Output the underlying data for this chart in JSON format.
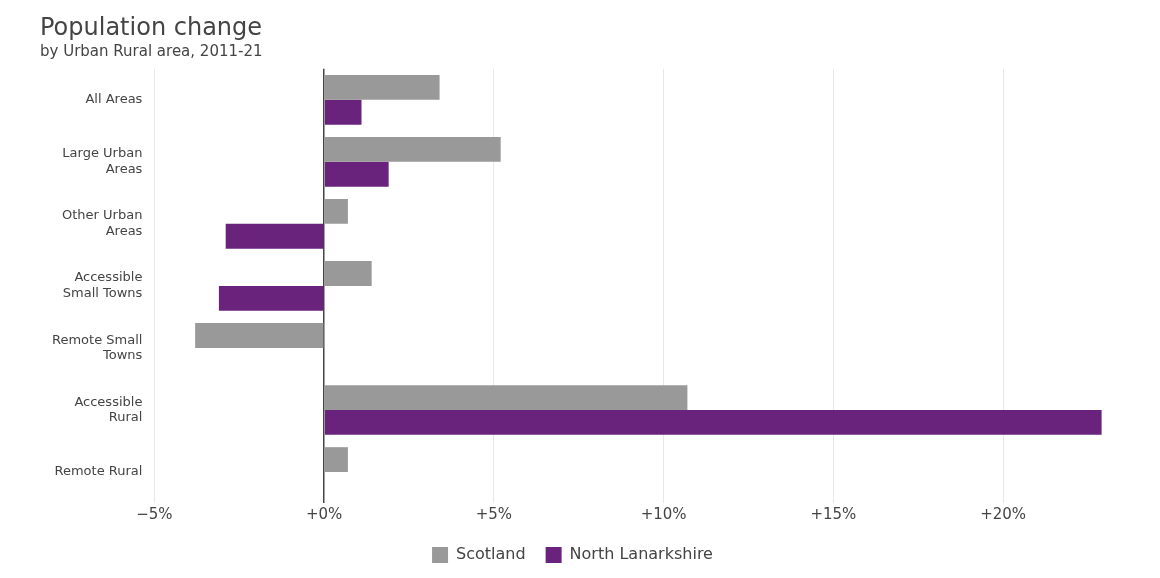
{
  "chart_data": {
    "type": "bar",
    "orientation": "horizontal",
    "title": "Population change",
    "subtitle": "by Urban Rural area, 2011-21",
    "categories": [
      "All Areas",
      "Large Urban Areas",
      "Other Urban Areas",
      "Accessible Small Towns",
      "Remote Small Towns",
      "Accessible Rural",
      "Remote Rural"
    ],
    "series": [
      {
        "name": "Scotland",
        "color": "#999999",
        "values": [
          3.4,
          5.2,
          0.7,
          1.4,
          -3.8,
          10.7,
          0.7
        ]
      },
      {
        "name": "North Lanarkshire",
        "color": "#6a237d",
        "values": [
          1.1,
          1.9,
          -2.9,
          -3.1,
          null,
          22.9,
          null
        ]
      }
    ],
    "xlim": [
      -5,
      23
    ],
    "xticks": [
      {
        "value": -5,
        "label": "−5%"
      },
      {
        "value": 0,
        "label": "+0%"
      },
      {
        "value": 5,
        "label": "+5%"
      },
      {
        "value": 10,
        "label": "+10%"
      },
      {
        "value": 15,
        "label": "+15%"
      },
      {
        "value": 20,
        "label": "+20%"
      }
    ],
    "grid": "x",
    "legend": "bottom"
  }
}
